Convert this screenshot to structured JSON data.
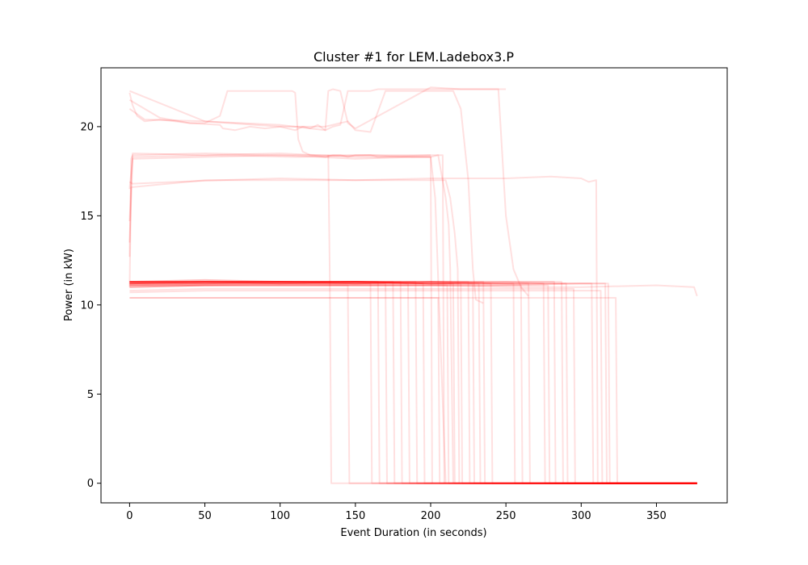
{
  "chart_data": {
    "type": "line",
    "title": "Cluster #1 for LEM.Ladebox3.P",
    "xlabel": "Event Duration (in seconds)",
    "ylabel": "Power (in kW)",
    "xlim": [
      -19,
      397
    ],
    "ylim": [
      -1.1,
      23.3
    ],
    "xticks": [
      0,
      50,
      100,
      150,
      200,
      250,
      300,
      350
    ],
    "yticks": [
      0,
      5,
      10,
      15,
      20
    ],
    "grid": false,
    "legend": "none",
    "line_color": "#ff0000",
    "line_opacity": 0.12,
    "series": [
      {
        "x": [
          0,
          2,
          5,
          10,
          20,
          30,
          40,
          50,
          60,
          65,
          70,
          80,
          90,
          100,
          105,
          108,
          110,
          112,
          115,
          120,
          130,
          135,
          140,
          145,
          150,
          160,
          165,
          200
        ],
        "y": [
          21.9,
          21.2,
          20.6,
          20.3,
          20.4,
          20.3,
          20.2,
          20.2,
          20.6,
          22.0,
          22.0,
          22.0,
          22.0,
          22.0,
          22.0,
          22.0,
          21.9,
          19.3,
          18.6,
          18.4,
          18.3,
          18.4,
          18.4,
          18.3,
          18.4,
          18.4,
          18.3,
          18.4
        ]
      },
      {
        "x": [
          0,
          20,
          40,
          60,
          62,
          70,
          80,
          90,
          100,
          105,
          110,
          115,
          120,
          125,
          130,
          135,
          140,
          145,
          150,
          155,
          160,
          165,
          170,
          180,
          200,
          220,
          240,
          250
        ],
        "y": [
          21.5,
          20.5,
          20.2,
          20.1,
          19.9,
          19.8,
          20.0,
          19.9,
          20.0,
          19.9,
          19.8,
          20.0,
          19.9,
          20.1,
          19.8,
          20.0,
          20.1,
          22.0,
          22.0,
          22.0,
          22.0,
          22.1,
          22.1,
          22.1,
          22.1,
          22.1,
          22.1,
          22.1
        ]
      },
      {
        "x": [
          0,
          50,
          100,
          120,
          130,
          132,
          135,
          140,
          145,
          150,
          200,
          220,
          230,
          240,
          245,
          250,
          255,
          260,
          265
        ],
        "y": [
          22.0,
          20.3,
          20.1,
          19.9,
          19.8,
          22.0,
          22.1,
          22.0,
          20.2,
          19.9,
          22.2,
          22.1,
          22.1,
          22.1,
          22.1,
          15.0,
          12.0,
          11.0,
          10.5
        ]
      },
      {
        "x": [
          0,
          10,
          50,
          100,
          130,
          140,
          145,
          150,
          160,
          170,
          180,
          210,
          215,
          220,
          225,
          228,
          230,
          235
        ],
        "y": [
          21.0,
          20.4,
          20.3,
          20.0,
          20.0,
          20.2,
          20.3,
          19.8,
          19.7,
          22.0,
          22.0,
          22.0,
          22.0,
          21.0,
          17.0,
          12.0,
          10.3,
          10.1
        ]
      },
      {
        "x": [
          0,
          1,
          2,
          50,
          100,
          150,
          200,
          205,
          210,
          212,
          213,
          215
        ],
        "y": [
          12.7,
          18.2,
          18.4,
          18.5,
          18.4,
          18.4,
          18.4,
          18.4,
          16.0,
          14.5,
          12.0,
          0.0
        ]
      },
      {
        "x": [
          0,
          2,
          50,
          100,
          150,
          200,
          205,
          208,
          209
        ],
        "y": [
          14.7,
          18.5,
          18.4,
          18.5,
          18.3,
          18.3,
          18.4,
          18.4,
          0.0
        ]
      },
      {
        "x": [
          0,
          2,
          60,
          110,
          160,
          190,
          200,
          203,
          210
        ],
        "y": [
          13.5,
          18.3,
          18.4,
          18.3,
          18.4,
          18.3,
          18.3,
          16.0,
          0.0
        ]
      },
      {
        "x": [
          0,
          2,
          50,
          100,
          150,
          190,
          195,
          200,
          201
        ],
        "y": [
          16.5,
          18.2,
          18.3,
          18.4,
          18.2,
          18.3,
          18.3,
          18.3,
          0.0
        ]
      },
      {
        "x": [
          0,
          2,
          30,
          60,
          100,
          150,
          200,
          250,
          280,
          300,
          305,
          310,
          311,
          312
        ],
        "y": [
          16.9,
          16.8,
          16.9,
          17.0,
          17.1,
          17.0,
          17.1,
          17.1,
          17.2,
          17.1,
          16.9,
          17.0,
          0.0,
          0.0
        ]
      },
      {
        "x": [
          0,
          1,
          50,
          100,
          150,
          200,
          210,
          213,
          216,
          218,
          219
        ],
        "y": [
          11.0,
          16.6,
          17.0,
          17.0,
          17.0,
          17.0,
          17.0,
          16.0,
          14.0,
          12.0,
          0.0
        ]
      },
      {
        "x": [
          0,
          50,
          100,
          150,
          180,
          181,
          200,
          250,
          300,
          350,
          377
        ],
        "y": [
          11.3,
          11.3,
          11.3,
          11.3,
          11.3,
          0.0,
          0.0,
          0.0,
          0.0,
          0.0,
          0.0
        ]
      },
      {
        "x": [
          0,
          50,
          100,
          150,
          185,
          186,
          250,
          377
        ],
        "y": [
          11.2,
          11.3,
          11.2,
          11.3,
          11.2,
          0.0,
          0.0,
          0.0
        ]
      },
      {
        "x": [
          0,
          50,
          100,
          150,
          190,
          191,
          377
        ],
        "y": [
          11.3,
          11.4,
          11.3,
          11.3,
          11.3,
          0.0,
          0.0
        ]
      },
      {
        "x": [
          0,
          50,
          100,
          150,
          195,
          196,
          377
        ],
        "y": [
          11.2,
          11.2,
          11.3,
          11.2,
          11.2,
          0.0,
          0.0
        ]
      },
      {
        "x": [
          0,
          50,
          100,
          150,
          200,
          215,
          216,
          377
        ],
        "y": [
          11.3,
          11.3,
          11.3,
          11.3,
          11.2,
          11.2,
          0.0,
          0.0
        ]
      },
      {
        "x": [
          0,
          50,
          100,
          150,
          200,
          220,
          221,
          377
        ],
        "y": [
          11.2,
          11.3,
          11.2,
          11.3,
          11.2,
          11.2,
          0.0,
          0.0
        ]
      },
      {
        "x": [
          0,
          50,
          100,
          150,
          200,
          225,
          226,
          377
        ],
        "y": [
          11.3,
          11.3,
          11.3,
          11.3,
          11.3,
          11.3,
          0.0,
          0.0
        ]
      },
      {
        "x": [
          0,
          50,
          100,
          150,
          200,
          232,
          233,
          377
        ],
        "y": [
          11.2,
          11.2,
          11.3,
          11.3,
          11.2,
          11.2,
          0.0,
          0.0
        ]
      },
      {
        "x": [
          0,
          50,
          100,
          150,
          200,
          240,
          241,
          377
        ],
        "y": [
          11.3,
          11.3,
          11.3,
          11.2,
          11.3,
          11.2,
          0.0,
          0.0
        ]
      },
      {
        "x": [
          0,
          50,
          100,
          150,
          200,
          250,
          255,
          256,
          377
        ],
        "y": [
          11.2,
          11.3,
          11.3,
          11.3,
          11.2,
          11.2,
          11.2,
          0.0,
          0.0
        ]
      },
      {
        "x": [
          0,
          50,
          100,
          150,
          200,
          250,
          265,
          266,
          377
        ],
        "y": [
          11.3,
          11.3,
          11.2,
          11.3,
          11.3,
          11.2,
          11.2,
          0.0,
          0.0
        ]
      },
      {
        "x": [
          0,
          50,
          100,
          150,
          200,
          250,
          275,
          276,
          377
        ],
        "y": [
          11.2,
          11.3,
          11.3,
          11.3,
          11.2,
          11.3,
          11.2,
          0.0,
          0.0
        ]
      },
      {
        "x": [
          0,
          50,
          100,
          150,
          200,
          250,
          282,
          283,
          377
        ],
        "y": [
          11.3,
          11.2,
          11.3,
          11.2,
          11.3,
          11.3,
          11.3,
          0.0,
          0.0
        ]
      },
      {
        "x": [
          0,
          50,
          100,
          150,
          200,
          250,
          290,
          291,
          377
        ],
        "y": [
          11.2,
          11.3,
          11.3,
          11.3,
          11.2,
          11.2,
          11.2,
          0.0,
          0.0
        ]
      },
      {
        "x": [
          0,
          50,
          100,
          150,
          200,
          250,
          300,
          316,
          317,
          377
        ],
        "y": [
          11.3,
          11.3,
          11.3,
          11.2,
          11.3,
          11.2,
          11.2,
          11.2,
          0.0,
          0.0
        ]
      },
      {
        "x": [
          0,
          50,
          100,
          150,
          200,
          250,
          300,
          318,
          319,
          377
        ],
        "y": [
          11.0,
          11.1,
          11.1,
          11.1,
          11.1,
          11.1,
          11.2,
          11.2,
          0.0,
          0.0
        ]
      },
      {
        "x": [
          0,
          50,
          100,
          150,
          200,
          250,
          300,
          350,
          375,
          377
        ],
        "y": [
          11.1,
          11.1,
          11.2,
          11.1,
          11.1,
          11.0,
          11.0,
          11.1,
          11.0,
          10.5
        ]
      },
      {
        "x": [
          0,
          50,
          100,
          150,
          200,
          250,
          300,
          323,
          324,
          377
        ],
        "y": [
          10.4,
          10.4,
          10.4,
          10.4,
          10.4,
          10.4,
          10.4,
          10.4,
          0.0,
          0.0
        ]
      },
      {
        "x": [
          0,
          50,
          100,
          150,
          200,
          205,
          206,
          377
        ],
        "y": [
          10.4,
          10.4,
          10.4,
          10.4,
          10.4,
          10.4,
          0.0,
          0.0
        ]
      },
      {
        "x": [
          0,
          50,
          100,
          150,
          200,
          250,
          295,
          296,
          377
        ],
        "y": [
          10.8,
          10.9,
          10.9,
          10.9,
          10.9,
          10.9,
          10.9,
          0.0,
          0.0
        ]
      },
      {
        "x": [
          0,
          50,
          100,
          150,
          200,
          250,
          313,
          314,
          377
        ],
        "y": [
          10.7,
          10.8,
          10.8,
          10.8,
          10.8,
          10.8,
          10.8,
          0.0,
          0.0
        ]
      },
      {
        "x": [
          0,
          50,
          100,
          145,
          146,
          147,
          377
        ],
        "y": [
          11.1,
          11.1,
          11.1,
          11.1,
          0.0,
          0.0,
          0.0
        ]
      },
      {
        "x": [
          0,
          50,
          100,
          160,
          161,
          377
        ],
        "y": [
          11.2,
          11.2,
          11.2,
          11.2,
          0.0,
          0.0
        ]
      },
      {
        "x": [
          0,
          50,
          100,
          150,
          170,
          171,
          377
        ],
        "y": [
          11.1,
          11.2,
          11.2,
          11.2,
          11.2,
          0.0,
          0.0
        ]
      },
      {
        "x": [
          0,
          50,
          100,
          150,
          200,
          211,
          212,
          377
        ],
        "y": [
          11.0,
          11.1,
          11.1,
          11.1,
          11.1,
          11.1,
          0.0,
          0.0
        ]
      },
      {
        "x": [
          0,
          50,
          100,
          150,
          200,
          228,
          229,
          377
        ],
        "y": [
          11.1,
          11.2,
          11.2,
          11.2,
          11.2,
          11.2,
          0.0,
          0.0
        ]
      },
      {
        "x": [
          0,
          50,
          100,
          150,
          200,
          250,
          260,
          261,
          377
        ],
        "y": [
          11.1,
          11.1,
          11.1,
          11.1,
          11.1,
          11.1,
          11.1,
          0.0,
          0.0
        ]
      },
      {
        "x": [
          0,
          50,
          100,
          150,
          200,
          250,
          278,
          279,
          377
        ],
        "y": [
          11.0,
          11.1,
          11.1,
          11.1,
          11.1,
          11.1,
          11.1,
          0.0,
          0.0
        ]
      },
      {
        "x": [
          0,
          50,
          100,
          150,
          200,
          250,
          307,
          308,
          377
        ],
        "y": [
          11.2,
          11.2,
          11.2,
          11.2,
          11.2,
          11.2,
          11.2,
          0.0,
          0.0
        ]
      },
      {
        "x": [
          0,
          50,
          100,
          150,
          165,
          166,
          377
        ],
        "y": [
          11.3,
          11.3,
          11.3,
          11.3,
          11.3,
          0.0,
          0.0
        ]
      },
      {
        "x": [
          0,
          50,
          100,
          150,
          175,
          176,
          377
        ],
        "y": [
          11.3,
          11.3,
          11.3,
          11.3,
          11.3,
          0.0,
          0.0
        ]
      },
      {
        "x": [
          0,
          50,
          100,
          150,
          200,
          235,
          236,
          377
        ],
        "y": [
          11.3,
          11.3,
          11.3,
          11.3,
          11.3,
          11.3,
          0.0,
          0.0
        ]
      },
      {
        "x": [
          0,
          50,
          100,
          150,
          200,
          250,
          287,
          288,
          377
        ],
        "y": [
          11.3,
          11.4,
          11.3,
          11.3,
          11.3,
          11.3,
          11.3,
          0.0,
          0.0
        ]
      },
      {
        "x": [
          132,
          133,
          134,
          377
        ],
        "y": [
          18.4,
          11.5,
          0.0,
          0.0
        ]
      }
    ]
  }
}
